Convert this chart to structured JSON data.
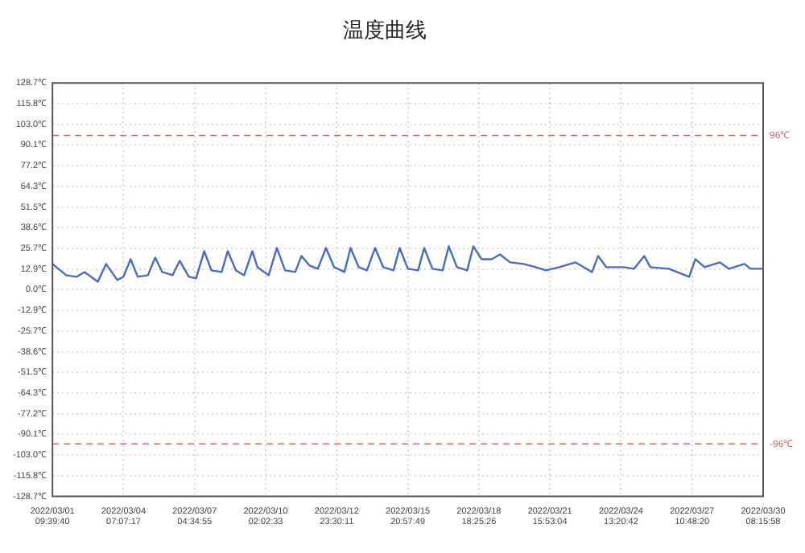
{
  "chart_data": {
    "type": "line",
    "title": "温度曲线",
    "x": [
      "2022-03-01T09:40",
      "2022-03-01T23:00",
      "2022-03-02T09:00",
      "2022-03-02T17:00",
      "2022-03-03T06:00",
      "2022-03-03T14:00",
      "2022-03-04T01:00",
      "2022-03-04T07:00",
      "2022-03-04T14:00",
      "2022-03-04T21:00",
      "2022-03-05T07:00",
      "2022-03-05T14:00",
      "2022-03-05T21:00",
      "2022-03-06T07:00",
      "2022-03-06T14:00",
      "2022-03-06T23:00",
      "2022-03-07T06:00",
      "2022-03-07T14:00",
      "2022-03-07T21:00",
      "2022-03-08T07:00",
      "2022-03-08T13:00",
      "2022-03-08T21:00",
      "2022-03-09T05:00",
      "2022-03-09T13:00",
      "2022-03-09T18:00",
      "2022-03-10T05:00",
      "2022-03-10T13:00",
      "2022-03-10T21:00",
      "2022-03-11T07:00",
      "2022-03-11T13:00",
      "2022-03-11T21:00",
      "2022-03-12T05:00",
      "2022-03-12T13:00",
      "2022-03-12T21:00",
      "2022-03-13T07:00",
      "2022-03-13T13:00",
      "2022-03-13T21:00",
      "2022-03-14T05:00",
      "2022-03-14T13:00",
      "2022-03-14T21:00",
      "2022-03-15T07:00",
      "2022-03-15T13:00",
      "2022-03-15T21:00",
      "2022-03-16T07:00",
      "2022-03-16T13:00",
      "2022-03-16T21:00",
      "2022-03-17T07:00",
      "2022-03-17T13:00",
      "2022-03-17T21:00",
      "2022-03-18T07:00",
      "2022-03-18T13:00",
      "2022-03-18T21:00",
      "2022-03-19T07:00",
      "2022-03-19T15:00",
      "2022-03-20T01:00",
      "2022-03-20T14:00",
      "2022-03-21T02:00",
      "2022-03-21T12:00",
      "2022-03-22T01:00",
      "2022-03-22T17:00",
      "2022-03-23T09:00",
      "2022-03-23T15:00",
      "2022-03-23T23:00",
      "2022-03-24T16:00",
      "2022-03-25T02:00",
      "2022-03-25T12:00",
      "2022-03-25T18:00",
      "2022-03-26T12:00",
      "2022-03-27T08:00",
      "2022-03-27T14:00",
      "2022-03-27T23:00",
      "2022-03-28T14:00",
      "2022-03-28T23:00",
      "2022-03-29T14:00",
      "2022-03-29T20:00",
      "2022-03-30T08:15"
    ],
    "series": [
      {
        "color": "#4a6bc4",
        "values": [
          16,
          9,
          8,
          11,
          5,
          16,
          6,
          8,
          19,
          8,
          9,
          20,
          11,
          9,
          18,
          8,
          7,
          24,
          12,
          11,
          24,
          12,
          9,
          24,
          14,
          9,
          26,
          12,
          11,
          21,
          15,
          13,
          26,
          14,
          11,
          26,
          14,
          12,
          26,
          14,
          12,
          26,
          13,
          12,
          26,
          13,
          12,
          27,
          14,
          12,
          27,
          19,
          19,
          22,
          17,
          16,
          14,
          12,
          14,
          17,
          11,
          21,
          14,
          14,
          13,
          21,
          14,
          13,
          8,
          19,
          14,
          17,
          13,
          16,
          13,
          13
        ]
      }
    ],
    "xlim": [
      "2022-03-01T09:39:40",
      "2022-03-30T08:15:58"
    ],
    "xticks": [
      {
        "value": "2022-03-01T09:39:40",
        "label": "2022/03/01 09:39:40"
      },
      {
        "value": "2022-03-04T07:07:17",
        "label": "2022/03/04 07:07:17"
      },
      {
        "value": "2022-03-07T04:34:55",
        "label": "2022/03/07 04:34:55"
      },
      {
        "value": "2022-03-10T02:02:33",
        "label": "2022/03/10 02:02:33"
      },
      {
        "value": "2022-03-12T23:30:11",
        "label": "2022/03/12 23:30:11"
      },
      {
        "value": "2022-03-15T20:57:49",
        "label": "2022/03/15 20:57:49"
      },
      {
        "value": "2022-03-18T18:25:26",
        "label": "2022/03/18 18:25:26"
      },
      {
        "value": "2022-03-21T15:53:04",
        "label": "2022/03/21 15:53:04"
      },
      {
        "value": "2022-03-24T13:20:42",
        "label": "2022/03/24 13:20:42"
      },
      {
        "value": "2022-03-27T10:48:20",
        "label": "2022/03/27 10:48:20"
      },
      {
        "value": "2022-03-30T08:15:58",
        "label": "2022/03/30 08:15:58"
      }
    ],
    "ylim": [
      -128.7,
      128.7
    ],
    "yticks": [
      {
        "value": 128.7,
        "label": "128.7℃"
      },
      {
        "value": 115.83,
        "label": "115.8℃"
      },
      {
        "value": 102.96,
        "label": "103.0℃"
      },
      {
        "value": 90.09,
        "label": "90.1℃"
      },
      {
        "value": 77.22,
        "label": "77.2℃"
      },
      {
        "value": 64.35,
        "label": "64.3℃"
      },
      {
        "value": 51.48,
        "label": "51.5℃"
      },
      {
        "value": 38.61,
        "label": "38.6℃"
      },
      {
        "value": 25.74,
        "label": "25.7℃"
      },
      {
        "value": 12.87,
        "label": "12.9℃"
      },
      {
        "value": 0,
        "label": "0.0℃"
      },
      {
        "value": -12.87,
        "label": "-12.9℃"
      },
      {
        "value": -25.74,
        "label": "-25.7℃"
      },
      {
        "value": -38.61,
        "label": "-38.6℃"
      },
      {
        "value": -51.48,
        "label": "-51.5℃"
      },
      {
        "value": -64.35,
        "label": "-64.3℃"
      },
      {
        "value": -77.22,
        "label": "-77.2℃"
      },
      {
        "value": -90.09,
        "label": "-90.1℃"
      },
      {
        "value": -102.96,
        "label": "-103.0℃"
      },
      {
        "value": -115.83,
        "label": "-115.8℃"
      },
      {
        "value": -128.7,
        "label": "-128.7℃"
      }
    ],
    "ref_lines": [
      {
        "axis": "y",
        "value": 96,
        "label": "96℃",
        "color": "#cc6666",
        "line_style": "dashed"
      },
      {
        "axis": "y",
        "value": -96,
        "label": "-96℃",
        "color": "#cc6666",
        "line_style": "dashed"
      }
    ],
    "grid": true,
    "marker": "none",
    "line_style": "solid"
  }
}
